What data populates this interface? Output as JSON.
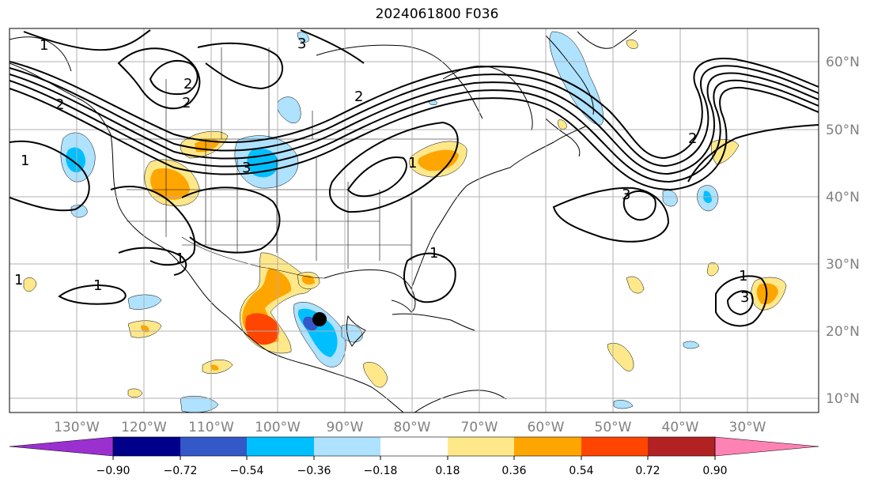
{
  "title": "2024061800 F036",
  "lon_labels": [
    "130°W",
    "120°W",
    "110°W",
    "100°W",
    "90°W",
    "80°W",
    "70°W",
    "60°W",
    "50°W",
    "40°W",
    "30°W"
  ],
  "lat_labels": [
    "60°N",
    "50°N",
    "40°N",
    "30°N",
    "20°N",
    "10°N"
  ],
  "contour_labels": [
    "1",
    "1",
    "2",
    "2",
    "3",
    "3",
    "2",
    "1",
    "2",
    "3",
    "1",
    "1",
    "1",
    "3",
    "1",
    "1",
    "2"
  ],
  "colorbar": {
    "tick_labels": [
      "−0.90",
      "−0.72",
      "−0.54",
      "−0.36",
      "−0.18",
      "0.18",
      "0.36",
      "0.54",
      "0.72",
      "0.90"
    ],
    "colors": [
      "#9b30d0",
      "#00008b",
      "#3358c8",
      "#00bfff",
      "#aee2ff",
      "#ffffff",
      "#ffe88a",
      "#ffa500",
      "#ff4500",
      "#b22222",
      "#ff82b4"
    ]
  },
  "colors": {
    "grid": "#b0b0b0",
    "contour": "#000000",
    "lat_lon_label": "#808080",
    "marker": "#000000"
  }
}
